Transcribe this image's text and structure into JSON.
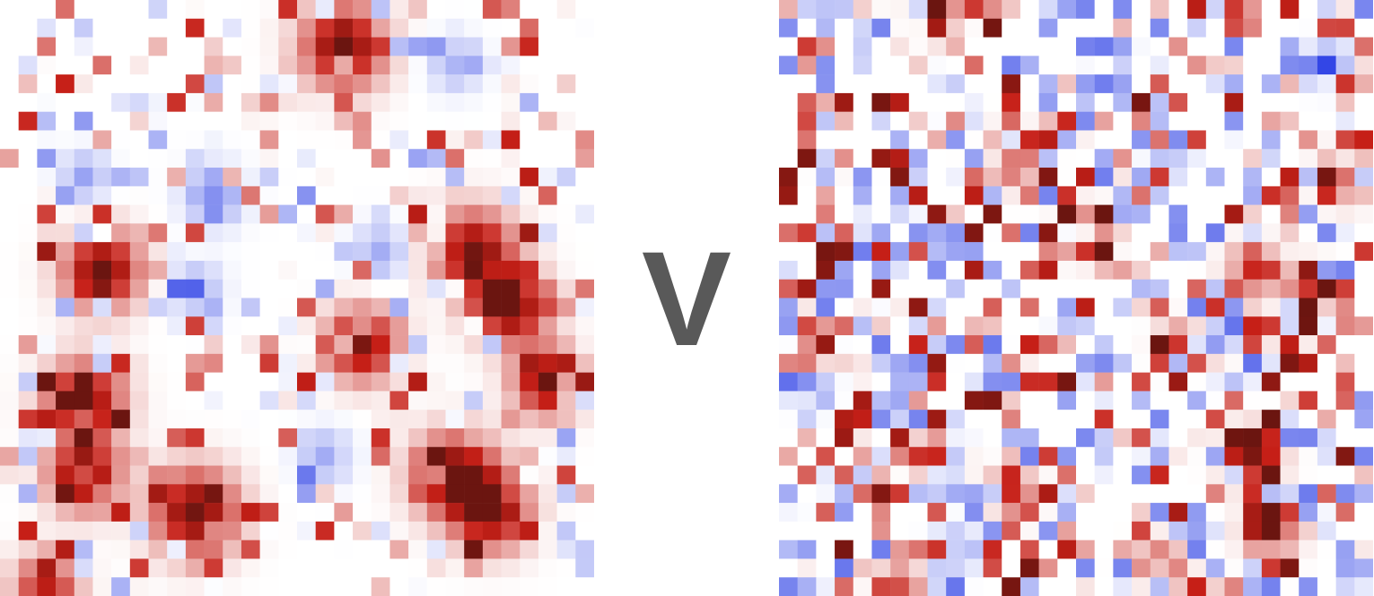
{
  "separator_label": "V",
  "colors": {
    "negative": "#3346e6",
    "neutral": "#ffffff",
    "positive": "#c61f17",
    "strong_positive": "#6b1510",
    "separator": "#595959"
  },
  "chart_data": [
    {
      "type": "heatmap",
      "panel": "left",
      "rows": 32,
      "cols": 32,
      "value_range": [
        -1,
        1
      ],
      "title": "",
      "xlabel": "",
      "ylabel": "",
      "grid": false,
      "legend": "none",
      "background_noise": {
        "seed": 11,
        "positive_probability": 0.12,
        "negative_probability": 0.1,
        "max_noise": 0.65
      },
      "clusters": [
        {
          "row": 2,
          "col": 18,
          "amplitude": 1.0,
          "sigma": 1.55
        },
        {
          "row": 14,
          "col": 5,
          "amplitude": 1.0,
          "sigma": 1.45
        },
        {
          "row": 18,
          "col": 19,
          "amplitude": 0.95,
          "sigma": 1.35
        },
        {
          "row": 13,
          "col": 25,
          "amplitude": 0.95,
          "sigma": 1.55
        },
        {
          "row": 16,
          "col": 27,
          "amplitude": 1.0,
          "sigma": 1.35
        },
        {
          "row": 20,
          "col": 29,
          "amplitude": 1.0,
          "sigma": 1.25
        },
        {
          "row": 21,
          "col": 4,
          "amplitude": 1.0,
          "sigma": 1.45
        },
        {
          "row": 25,
          "col": 4,
          "amplitude": 1.0,
          "sigma": 1.3
        },
        {
          "row": 27,
          "col": 10,
          "amplitude": 1.0,
          "sigma": 1.6
        },
        {
          "row": 25,
          "col": 24,
          "amplitude": 1.0,
          "sigma": 1.55
        },
        {
          "row": 27,
          "col": 26,
          "amplitude": 0.95,
          "sigma": 1.4
        },
        {
          "row": 31,
          "col": 2,
          "amplitude": 0.75,
          "sigma": 1.2
        }
      ],
      "negative_patches": [
        {
          "row": 10,
          "col": 11,
          "amplitude": -0.6,
          "sigma": 1.1
        },
        {
          "row": 15,
          "col": 10,
          "amplitude": -0.45,
          "sigma": 1.0
        },
        {
          "row": 13,
          "col": 20,
          "amplitude": -0.45,
          "sigma": 1.0
        },
        {
          "row": 24,
          "col": 17,
          "amplitude": -0.45,
          "sigma": 1.0
        },
        {
          "row": 9,
          "col": 4,
          "amplitude": -0.5,
          "sigma": 0.9
        },
        {
          "row": 3,
          "col": 24,
          "amplitude": -0.4,
          "sigma": 1.0
        }
      ]
    },
    {
      "type": "heatmap",
      "panel": "right",
      "rows": 32,
      "cols": 32,
      "value_range": [
        -1,
        1
      ],
      "title": "",
      "xlabel": "",
      "ylabel": "",
      "grid": false,
      "legend": "none",
      "background_noise": {
        "seed": 29,
        "positive_probability": 0.28,
        "negative_probability": 0.25,
        "max_noise": 0.85
      },
      "clusters": [
        {
          "row": 0,
          "col": 8,
          "amplitude": 0.75,
          "sigma": 0.8
        },
        {
          "row": 8,
          "col": 12,
          "amplitude": 0.75,
          "sigma": 0.9
        },
        {
          "row": 12,
          "col": 16,
          "amplitude": 0.7,
          "sigma": 0.85
        },
        {
          "row": 14,
          "col": 25,
          "amplitude": 0.7,
          "sigma": 0.9
        },
        {
          "row": 15,
          "col": 28,
          "amplitude": 0.65,
          "sigma": 0.85
        },
        {
          "row": 18,
          "col": 21,
          "amplitude": 0.65,
          "sigma": 0.75
        },
        {
          "row": 24,
          "col": 8,
          "amplitude": 0.7,
          "sigma": 0.8
        },
        {
          "row": 26,
          "col": 12,
          "amplitude": 0.7,
          "sigma": 0.85
        },
        {
          "row": 24,
          "col": 25,
          "amplitude": 0.75,
          "sigma": 1.0
        },
        {
          "row": 28,
          "col": 26,
          "amplitude": 0.7,
          "sigma": 0.95
        },
        {
          "row": 30,
          "col": 20,
          "amplitude": 0.65,
          "sigma": 0.9
        },
        {
          "row": 9,
          "col": 30,
          "amplitude": 0.7,
          "sigma": 0.9
        },
        {
          "row": 31,
          "col": 6,
          "amplitude": 0.65,
          "sigma": 0.8
        }
      ],
      "negative_patches": [
        {
          "row": 3,
          "col": 29,
          "amplitude": -0.7,
          "sigma": 0.75
        },
        {
          "row": 20,
          "col": 1,
          "amplitude": -0.6,
          "sigma": 0.8
        },
        {
          "row": 29,
          "col": 9,
          "amplitude": -0.55,
          "sigma": 0.8
        },
        {
          "row": 19,
          "col": 24,
          "amplitude": -0.5,
          "sigma": 0.75
        }
      ]
    }
  ]
}
